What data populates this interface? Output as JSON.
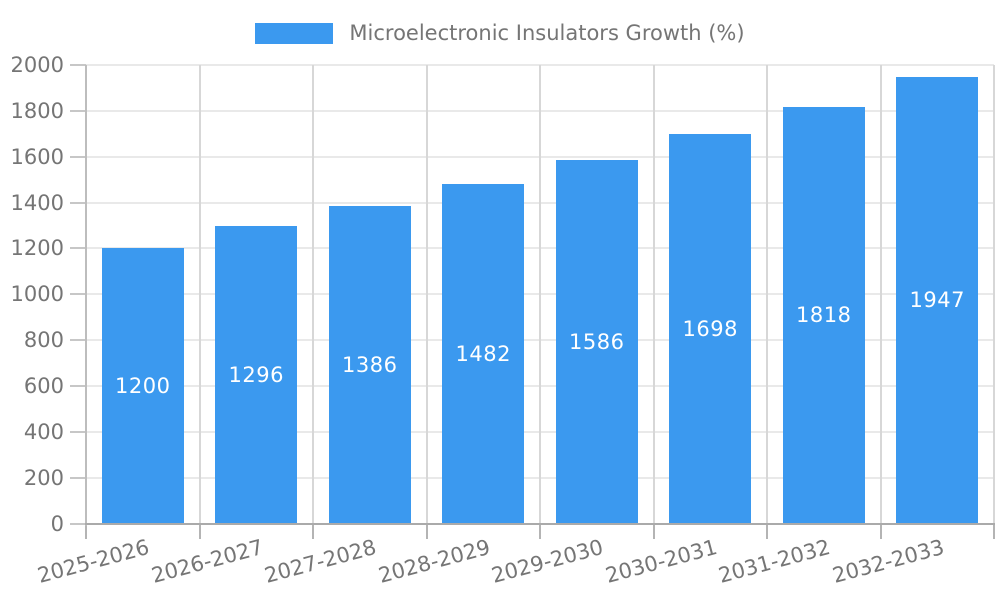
{
  "legend": {
    "label": "Microelectronic Insulators Growth (%)"
  },
  "colors": {
    "bar": "#3b99ef",
    "bar_label": "#ffffff",
    "axis_text": "#757575",
    "h_gridline": "#e9e9e9",
    "v_gridline": "#d7d7d7",
    "axis_line": "#aaaaaa"
  },
  "chart_data": {
    "type": "bar",
    "title": "Microelectronic Insulators Growth (%)",
    "categories": [
      "2025-2026",
      "2026-2027",
      "2027-2028",
      "2028-2029",
      "2029-2030",
      "2030-2031",
      "2031-2032",
      "2032-2033"
    ],
    "values": [
      1200,
      1296,
      1386,
      1482,
      1586,
      1698,
      1818,
      1947
    ],
    "bar_labels": [
      "1200",
      "1296",
      "1386",
      "1482",
      "1586",
      "1698",
      "1818",
      "1947"
    ],
    "xlabel": "",
    "ylabel": "",
    "ylim": [
      0,
      2000
    ],
    "ytick_step": 200,
    "ytick_labels": [
      "0",
      "200",
      "400",
      "600",
      "800",
      "1000",
      "1200",
      "1400",
      "1600",
      "1800",
      "2000"
    ],
    "grid": true,
    "legend_position": "top",
    "bar_label_position": "center"
  }
}
